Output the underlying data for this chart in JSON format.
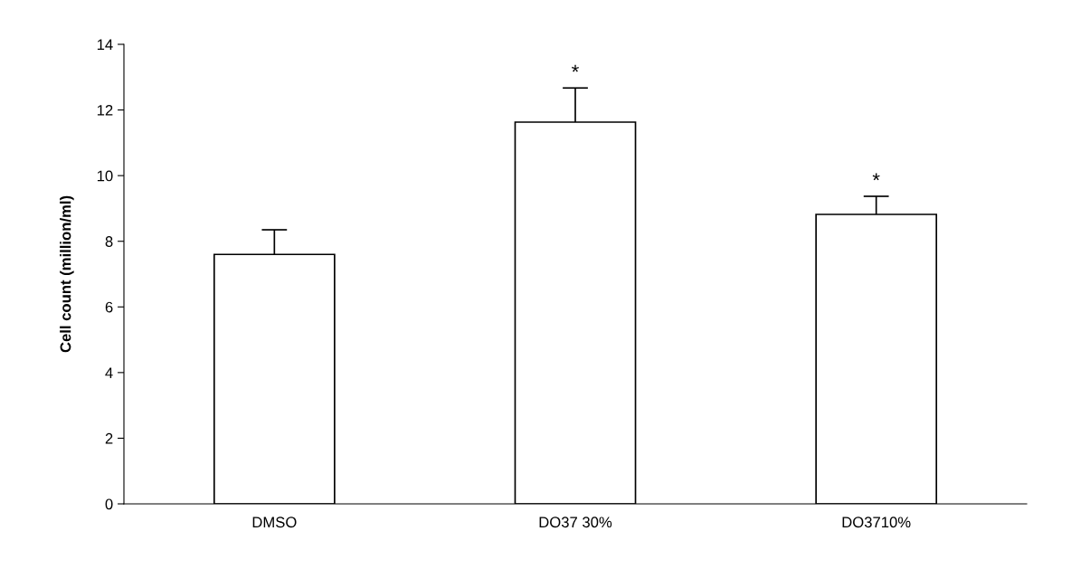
{
  "chart_data": {
    "type": "bar",
    "ylabel": "Cell count (million/ml)",
    "categories": [
      "DMSO",
      "DO37 30%",
      "DO3710%"
    ],
    "values": [
      7.6,
      11.63,
      8.82
    ],
    "errors": [
      0.75,
      1.04,
      0.55
    ],
    "color": "#ffffff",
    "ylim": [
      0,
      14
    ],
    "yticks": [
      0,
      2,
      4,
      6,
      8,
      10,
      12,
      14
    ],
    "grid": false,
    "annotations": [
      "*",
      "*"
    ]
  }
}
